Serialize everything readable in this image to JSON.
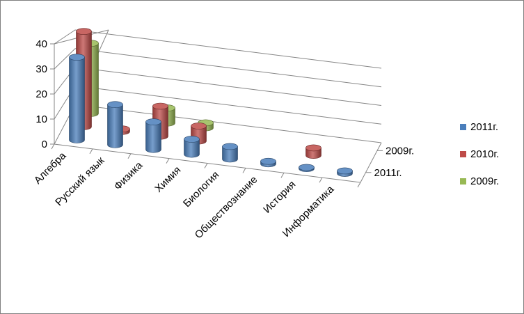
{
  "chart_data": {
    "type": "bar",
    "style": "3d-cylinder",
    "categories": [
      "Алгебра",
      "Русский язык",
      "Физика",
      "Химия",
      "Биология",
      "Обществознание",
      "История",
      "Информатика"
    ],
    "series": [
      {
        "name": "2011г.",
        "color": "#4a7ebb",
        "values": [
          33,
          16,
          11,
          6,
          5,
          1,
          0.5,
          1
        ]
      },
      {
        "name": "2010г.",
        "color": "#be4b48",
        "values": [
          38,
          1,
          12,
          6,
          null,
          null,
          3,
          null
        ]
      },
      {
        "name": "2009г.",
        "color": "#98b954",
        "values": [
          28,
          null,
          6,
          2,
          null,
          null,
          null,
          null
        ]
      }
    ],
    "depth_labels": [
      "2009г.",
      "2011г."
    ],
    "y_ticks": [
      "0",
      "10",
      "20",
      "30",
      "40"
    ],
    "ylim": [
      0,
      40
    ],
    "grid": true,
    "legend_position": "right"
  }
}
